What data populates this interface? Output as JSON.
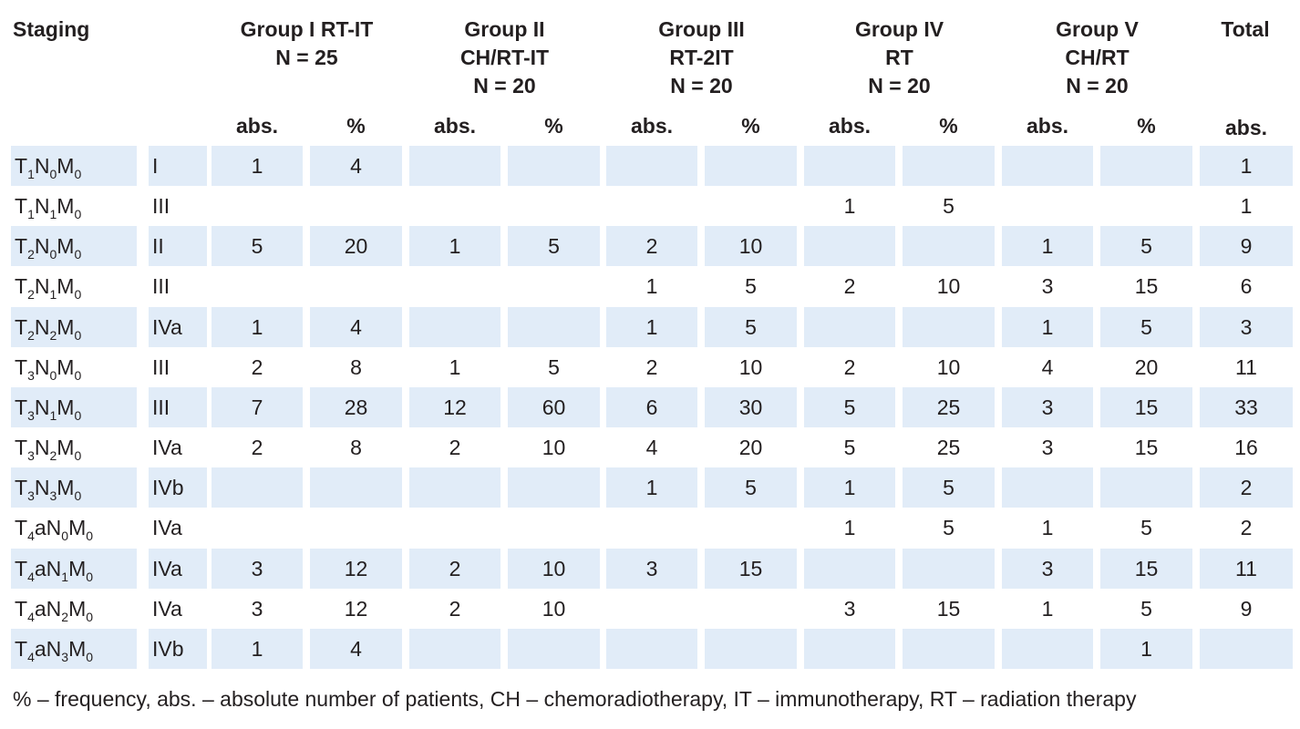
{
  "table": {
    "headers": {
      "staging": "Staging",
      "groups": [
        {
          "lines": [
            "Group I RT-IT",
            "N = 25"
          ]
        },
        {
          "lines": [
            "Group II",
            "CH/RT-IT",
            "N = 20"
          ]
        },
        {
          "lines": [
            "Group III",
            "RT-2IT",
            "N = 20"
          ]
        },
        {
          "lines": [
            "Group IV",
            "RT",
            "N = 20"
          ]
        },
        {
          "lines": [
            "Group V",
            "CH/RT",
            "N = 20"
          ]
        }
      ],
      "total": "Total",
      "abs": "abs.",
      "pct": "%"
    },
    "rows": [
      {
        "tnm": [
          [
            "T",
            "1"
          ],
          [
            "N",
            "0"
          ],
          [
            "M",
            "0"
          ]
        ],
        "stage": "I",
        "cells": [
          "1",
          "4",
          "",
          "",
          "",
          "",
          "",
          "",
          "",
          ""
        ],
        "total": "1"
      },
      {
        "tnm": [
          [
            "T",
            "1"
          ],
          [
            "N",
            "1"
          ],
          [
            "M",
            "0"
          ]
        ],
        "stage": "III",
        "cells": [
          "",
          "",
          "",
          "",
          "",
          "",
          "1",
          "5",
          "",
          ""
        ],
        "total": "1"
      },
      {
        "tnm": [
          [
            "T",
            "2"
          ],
          [
            "N",
            "0"
          ],
          [
            "M",
            "0"
          ]
        ],
        "stage": "II",
        "cells": [
          "5",
          "20",
          "1",
          "5",
          "2",
          "10",
          "",
          "",
          "1",
          "5"
        ],
        "total": "9"
      },
      {
        "tnm": [
          [
            "T",
            "2"
          ],
          [
            "N",
            "1"
          ],
          [
            "M",
            "0"
          ]
        ],
        "stage": "III",
        "cells": [
          "",
          "",
          "",
          "",
          "1",
          "5",
          "2",
          "10",
          "3",
          "15"
        ],
        "total": "6"
      },
      {
        "tnm": [
          [
            "T",
            "2"
          ],
          [
            "N",
            "2"
          ],
          [
            "M",
            "0"
          ]
        ],
        "stage": "IVa",
        "cells": [
          "1",
          "4",
          "",
          "",
          "1",
          "5",
          "",
          "",
          "1",
          "5"
        ],
        "total": "3"
      },
      {
        "tnm": [
          [
            "T",
            "3"
          ],
          [
            "N",
            "0"
          ],
          [
            "M",
            "0"
          ]
        ],
        "stage": "III",
        "cells": [
          "2",
          "8",
          "1",
          "5",
          "2",
          "10",
          "2",
          "10",
          "4",
          "20"
        ],
        "total": "11"
      },
      {
        "tnm": [
          [
            "T",
            "3"
          ],
          [
            "N",
            "1"
          ],
          [
            "M",
            "0"
          ]
        ],
        "stage": "III",
        "cells": [
          "7",
          "28",
          "12",
          "60",
          "6",
          "30",
          "5",
          "25",
          "3",
          "15"
        ],
        "total": "33"
      },
      {
        "tnm": [
          [
            "T",
            "3"
          ],
          [
            "N",
            "2"
          ],
          [
            "M",
            "0"
          ]
        ],
        "stage": "IVa",
        "cells": [
          "2",
          "8",
          "2",
          "10",
          "4",
          "20",
          "5",
          "25",
          "3",
          "15"
        ],
        "total": "16"
      },
      {
        "tnm": [
          [
            "T",
            "3"
          ],
          [
            "N",
            "3"
          ],
          [
            "M",
            "0"
          ]
        ],
        "stage": "IVb",
        "cells": [
          "",
          "",
          "",
          "",
          "1",
          "5",
          "1",
          "5",
          "",
          ""
        ],
        "total": "2"
      },
      {
        "tnm": [
          [
            "T",
            "4"
          ],
          [
            "aN",
            "0"
          ],
          [
            "M",
            "0"
          ]
        ],
        "stage": "IVa",
        "cells": [
          "",
          "",
          "",
          "",
          "",
          "",
          "1",
          "5",
          "1",
          "5"
        ],
        "total": "2"
      },
      {
        "tnm": [
          [
            "T",
            "4"
          ],
          [
            "aN",
            "1"
          ],
          [
            "M",
            "0"
          ]
        ],
        "stage": "IVa",
        "cells": [
          "3",
          "12",
          "2",
          "10",
          "3",
          "15",
          "",
          "",
          "3",
          "15"
        ],
        "total": "11"
      },
      {
        "tnm": [
          [
            "T",
            "4"
          ],
          [
            "aN",
            "2"
          ],
          [
            "M",
            "0"
          ]
        ],
        "stage": "IVa",
        "cells": [
          "3",
          "12",
          "2",
          "10",
          "",
          "",
          "3",
          "15",
          "1",
          "5"
        ],
        "total": "9"
      },
      {
        "tnm": [
          [
            "T",
            "4"
          ],
          [
            "aN",
            "3"
          ],
          [
            "M",
            "0"
          ]
        ],
        "stage": "IVb",
        "cells": [
          "1",
          "4",
          "",
          "",
          "",
          "",
          "",
          "",
          "",
          "1"
        ],
        "total": ""
      }
    ],
    "colors": {
      "shade": "#e1ecf8",
      "text": "#231f20"
    }
  },
  "footnote": "% – frequency, abs. – absolute number of patients, CH – chemoradiotherapy, IT – immunotherapy, RT – radiation therapy"
}
